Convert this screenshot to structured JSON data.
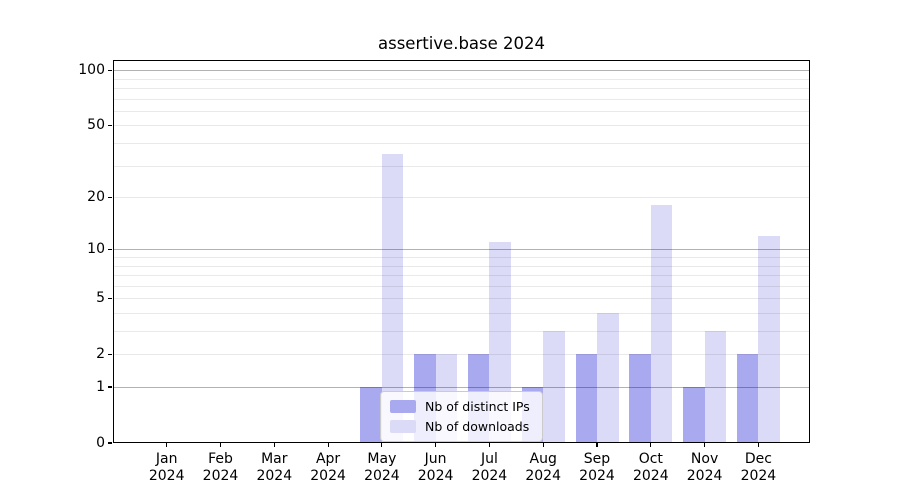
{
  "chart_data": {
    "type": "bar",
    "title": "assertive.base 2024",
    "x_tick_year": "2024",
    "categories": [
      "Jan",
      "Feb",
      "Mar",
      "Apr",
      "May",
      "Jun",
      "Jul",
      "Aug",
      "Sep",
      "Oct",
      "Nov",
      "Dec"
    ],
    "series": [
      {
        "name": "Nb of distinct IPs",
        "color": "#a9a9f0",
        "values": [
          0,
          0,
          0,
          0,
          1,
          2,
          2,
          1,
          2,
          2,
          1,
          2
        ]
      },
      {
        "name": "Nb of downloads",
        "color": "#dbdbf8",
        "values": [
          0,
          0,
          0,
          0,
          35,
          2,
          11,
          3,
          4,
          18,
          3,
          12
        ]
      }
    ],
    "yscale": "log1p",
    "ylim": [
      0,
      113
    ],
    "y_tick_labels": [
      0,
      1,
      2,
      5,
      10,
      20,
      50,
      100
    ],
    "grid": {
      "major_values": [
        1,
        10,
        100
      ],
      "minor_values": [
        2,
        3,
        4,
        5,
        6,
        7,
        8,
        9,
        20,
        30,
        40,
        50,
        60,
        70,
        80,
        90
      ],
      "major_color": "rgba(0,0,0,0.30)",
      "minor_color": "rgba(0,0,0,0.085)"
    },
    "legend_position": "lower center"
  }
}
